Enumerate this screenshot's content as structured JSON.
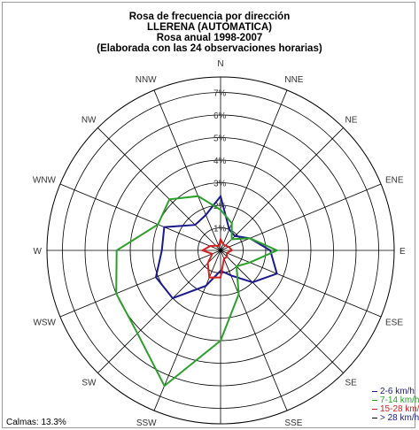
{
  "title": {
    "line1": "Rosa de frecuencia por dirección",
    "line2": "LLERENA (AUTOMATICA)",
    "line3": "Rosa anual 1998-2007",
    "line4": "(Elaborada con las 24 observaciones horarias)"
  },
  "calmas": "Calmas: 13.3%",
  "chart_data": {
    "type": "radar",
    "directions": [
      "N",
      "NNE",
      "NE",
      "ENE",
      "E",
      "ESE",
      "SE",
      "SSE",
      "S",
      "SSW",
      "SW",
      "WSW",
      "W",
      "WNW",
      "NW",
      "NNW"
    ],
    "rings": [
      1,
      2,
      3,
      4,
      5,
      6,
      7
    ],
    "ring_labels": [
      "1%",
      "2%",
      "3%",
      "4%",
      "5%",
      "6%",
      "7%"
    ],
    "rmax": 7,
    "grid": true,
    "series": [
      {
        "name": "2-6 km/h",
        "color": "#1a1a8c",
        "values": [
          2.4,
          1.0,
          0.9,
          1.4,
          2.2,
          2.7,
          2.0,
          1.2,
          0.9,
          1.7,
          3.0,
          3.1,
          2.6,
          2.7,
          1.6,
          1.7
        ]
      },
      {
        "name": "7-14 km/h",
        "color": "#2aa02a",
        "values": [
          1.8,
          1.3,
          0.7,
          1.4,
          2.5,
          1.4,
          1.0,
          2.1,
          4.0,
          6.5,
          5.2,
          5.0,
          4.6,
          3.0,
          3.2,
          2.6
        ]
      },
      {
        "name": "15-28 km/h",
        "color": "#d42020",
        "values": [
          0.5,
          0.3,
          0.3,
          0.4,
          0.5,
          0.3,
          0.4,
          0.4,
          1.2,
          1.3,
          0.8,
          0.4,
          0.8,
          0.5,
          0.3,
          0.2
        ]
      },
      {
        "name": "> 28 km/h",
        "color": "#000000",
        "values": [
          0,
          0,
          0,
          0,
          0,
          0,
          0,
          0,
          0,
          0,
          0,
          0,
          0,
          0,
          0,
          0
        ]
      }
    ]
  }
}
